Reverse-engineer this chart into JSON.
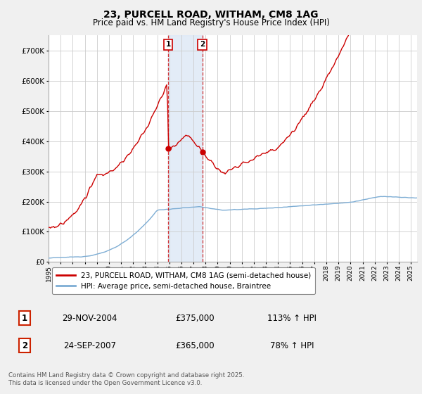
{
  "title": "23, PURCELL ROAD, WITHAM, CM8 1AG",
  "subtitle": "Price paid vs. HM Land Registry's House Price Index (HPI)",
  "ylim": [
    0,
    750000
  ],
  "yticks": [
    0,
    100000,
    200000,
    300000,
    400000,
    500000,
    600000,
    700000
  ],
  "xlim_start": 1995.0,
  "xlim_end": 2025.5,
  "bg_color": "#f0f0f0",
  "plot_bg_color": "#ffffff",
  "grid_color": "#cccccc",
  "red_color": "#cc0000",
  "blue_color": "#7dadd4",
  "shade_color": "#dce8f5",
  "marker1_date": 2004.91,
  "marker1_value": 375000,
  "marker2_date": 2007.73,
  "marker2_value": 365000,
  "shade_start": 2004.91,
  "shade_end": 2007.73,
  "legend_label1": "23, PURCELL ROAD, WITHAM, CM8 1AG (semi-detached house)",
  "legend_label2": "HPI: Average price, semi-detached house, Braintree",
  "ann1_label": "1",
  "ann2_label": "2",
  "ann1_text": "29-NOV-2004",
  "ann1_price": "£375,000",
  "ann1_hpi": "113% ↑ HPI",
  "ann2_text": "24-SEP-2007",
  "ann2_price": "£365,000",
  "ann2_hpi": "78% ↑ HPI",
  "footer": "Contains HM Land Registry data © Crown copyright and database right 2025.\nThis data is licensed under the Open Government Licence v3.0.",
  "xtick_years": [
    1995,
    1996,
    1997,
    1998,
    1999,
    2000,
    2001,
    2002,
    2003,
    2004,
    2005,
    2006,
    2007,
    2008,
    2009,
    2010,
    2011,
    2012,
    2013,
    2014,
    2015,
    2016,
    2017,
    2018,
    2019,
    2020,
    2021,
    2022,
    2023,
    2024,
    2025
  ]
}
